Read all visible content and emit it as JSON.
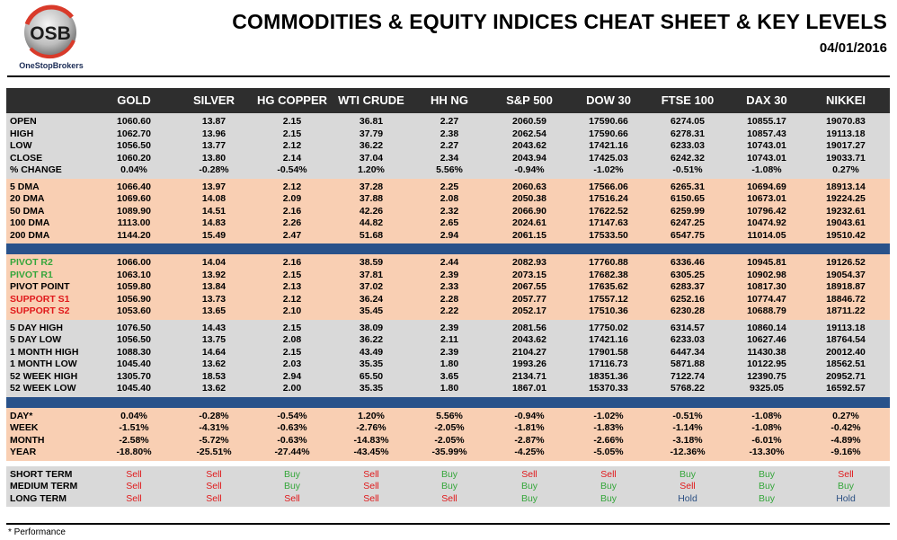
{
  "logo": {
    "mark": "OSB",
    "name": "OneStopBrokers"
  },
  "title": "COMMODITIES & EQUITY INDICES CHEAT SHEET & KEY LEVELS",
  "date": "04/01/2016",
  "columns": [
    "GOLD",
    "SILVER",
    "HG COPPER",
    "WTI CRUDE",
    "HH NG",
    "S&P 500",
    "DOW 30",
    "FTSE 100",
    "DAX 30",
    "NIKKEI"
  ],
  "sections": [
    {
      "style": "gray",
      "rows": [
        {
          "label": "OPEN",
          "values": [
            "1060.60",
            "13.87",
            "2.15",
            "36.81",
            "2.27",
            "2060.59",
            "17590.66",
            "6274.05",
            "10855.17",
            "19070.83"
          ]
        },
        {
          "label": "HIGH",
          "values": [
            "1062.70",
            "13.96",
            "2.15",
            "37.79",
            "2.38",
            "2062.54",
            "17590.66",
            "6278.31",
            "10857.43",
            "19113.18"
          ]
        },
        {
          "label": "LOW",
          "values": [
            "1056.50",
            "13.77",
            "2.12",
            "36.22",
            "2.27",
            "2043.62",
            "17421.16",
            "6233.03",
            "10743.01",
            "19017.27"
          ]
        },
        {
          "label": "CLOSE",
          "values": [
            "1060.20",
            "13.80",
            "2.14",
            "37.04",
            "2.34",
            "2043.94",
            "17425.03",
            "6242.32",
            "10743.01",
            "19033.71"
          ]
        },
        {
          "label": "% CHANGE",
          "values": [
            "0.04%",
            "-0.28%",
            "-0.54%",
            "1.20%",
            "5.56%",
            "-0.94%",
            "-1.02%",
            "-0.51%",
            "-1.08%",
            "0.27%"
          ]
        }
      ]
    },
    {
      "style": "peach",
      "rows": [
        {
          "label": "5 DMA",
          "values": [
            "1066.40",
            "13.97",
            "2.12",
            "37.28",
            "2.25",
            "2060.63",
            "17566.06",
            "6265.31",
            "10694.69",
            "18913.14"
          ]
        },
        {
          "label": "20 DMA",
          "values": [
            "1069.60",
            "14.08",
            "2.09",
            "37.88",
            "2.08",
            "2050.38",
            "17516.24",
            "6150.65",
            "10673.01",
            "19224.25"
          ]
        },
        {
          "label": "50 DMA",
          "values": [
            "1089.90",
            "14.51",
            "2.16",
            "42.26",
            "2.32",
            "2066.90",
            "17622.52",
            "6259.99",
            "10796.42",
            "19232.61"
          ]
        },
        {
          "label": "100 DMA",
          "values": [
            "1113.00",
            "14.83",
            "2.26",
            "44.82",
            "2.65",
            "2024.61",
            "17147.63",
            "6247.25",
            "10474.92",
            "19043.61"
          ]
        },
        {
          "label": "200 DMA",
          "values": [
            "1144.20",
            "15.49",
            "2.47",
            "51.68",
            "2.94",
            "2061.15",
            "17533.50",
            "6547.75",
            "11014.05",
            "19510.42"
          ]
        }
      ]
    },
    {
      "style": "blue"
    },
    {
      "style": "peach",
      "rows": [
        {
          "label": "PIVOT R2",
          "label_color": "green",
          "values": [
            "1066.00",
            "14.04",
            "2.16",
            "38.59",
            "2.44",
            "2082.93",
            "17760.88",
            "6336.46",
            "10945.81",
            "19126.52"
          ]
        },
        {
          "label": "PIVOT R1",
          "label_color": "green",
          "values": [
            "1063.10",
            "13.92",
            "2.15",
            "37.81",
            "2.39",
            "2073.15",
            "17682.38",
            "6305.25",
            "10902.98",
            "19054.37"
          ]
        },
        {
          "label": "PIVOT POINT",
          "values": [
            "1059.80",
            "13.84",
            "2.13",
            "37.02",
            "2.33",
            "2067.55",
            "17635.62",
            "6283.37",
            "10817.30",
            "18918.87"
          ]
        },
        {
          "label": "SUPPORT S1",
          "label_color": "red",
          "values": [
            "1056.90",
            "13.73",
            "2.12",
            "36.24",
            "2.28",
            "2057.77",
            "17557.12",
            "6252.16",
            "10774.47",
            "18846.72"
          ]
        },
        {
          "label": "SUPPORT S2",
          "label_color": "red",
          "values": [
            "1053.60",
            "13.65",
            "2.10",
            "35.45",
            "2.22",
            "2052.17",
            "17510.36",
            "6230.28",
            "10688.79",
            "18711.22"
          ]
        }
      ]
    },
    {
      "style": "gray",
      "rows": [
        {
          "label": "5 DAY HIGH",
          "values": [
            "1076.50",
            "14.43",
            "2.15",
            "38.09",
            "2.39",
            "2081.56",
            "17750.02",
            "6314.57",
            "10860.14",
            "19113.18"
          ]
        },
        {
          "label": "5 DAY LOW",
          "values": [
            "1056.50",
            "13.75",
            "2.08",
            "36.22",
            "2.11",
            "2043.62",
            "17421.16",
            "6233.03",
            "10627.46",
            "18764.54"
          ]
        },
        {
          "label": "1 MONTH HIGH",
          "values": [
            "1088.30",
            "14.64",
            "2.15",
            "43.49",
            "2.39",
            "2104.27",
            "17901.58",
            "6447.34",
            "11430.38",
            "20012.40"
          ]
        },
        {
          "label": "1 MONTH LOW",
          "values": [
            "1045.40",
            "13.62",
            "2.03",
            "35.35",
            "1.80",
            "1993.26",
            "17116.73",
            "5871.88",
            "10122.95",
            "18562.51"
          ]
        },
        {
          "label": "52 WEEK HIGH",
          "values": [
            "1305.70",
            "18.53",
            "2.94",
            "65.50",
            "3.65",
            "2134.71",
            "18351.36",
            "7122.74",
            "12390.75",
            "20952.71"
          ]
        },
        {
          "label": "52 WEEK LOW",
          "values": [
            "1045.40",
            "13.62",
            "2.00",
            "35.35",
            "1.80",
            "1867.01",
            "15370.33",
            "5768.22",
            "9325.05",
            "16592.57"
          ]
        }
      ]
    },
    {
      "style": "blue"
    },
    {
      "style": "peach",
      "rows": [
        {
          "label": "DAY*",
          "values": [
            "0.04%",
            "-0.28%",
            "-0.54%",
            "1.20%",
            "5.56%",
            "-0.94%",
            "-1.02%",
            "-0.51%",
            "-1.08%",
            "0.27%"
          ]
        },
        {
          "label": "WEEK",
          "values": [
            "-1.51%",
            "-4.31%",
            "-0.63%",
            "-2.76%",
            "-2.05%",
            "-1.81%",
            "-1.83%",
            "-1.14%",
            "-1.08%",
            "-0.42%"
          ]
        },
        {
          "label": "MONTH",
          "values": [
            "-2.58%",
            "-5.72%",
            "-0.63%",
            "-14.83%",
            "-2.05%",
            "-2.87%",
            "-2.66%",
            "-3.18%",
            "-6.01%",
            "-4.89%"
          ]
        },
        {
          "label": "YEAR",
          "values": [
            "-18.80%",
            "-25.51%",
            "-27.44%",
            "-43.45%",
            "-35.99%",
            "-4.25%",
            "-5.05%",
            "-12.36%",
            "-13.30%",
            "-9.16%"
          ]
        }
      ]
    },
    {
      "style": "white"
    },
    {
      "style": "gray",
      "signals": true,
      "rows": [
        {
          "label": "SHORT TERM",
          "values": [
            "Sell",
            "Sell",
            "Buy",
            "Sell",
            "Buy",
            "Sell",
            "Sell",
            "Buy",
            "Buy",
            "Sell"
          ]
        },
        {
          "label": "MEDIUM TERM",
          "values": [
            "Sell",
            "Sell",
            "Buy",
            "Sell",
            "Buy",
            "Buy",
            "Buy",
            "Sell",
            "Buy",
            "Buy"
          ]
        },
        {
          "label": "LONG TERM",
          "values": [
            "Sell",
            "Sell",
            "Sell",
            "Sell",
            "Sell",
            "Buy",
            "Buy",
            "Hold",
            "Buy",
            "Hold"
          ]
        }
      ]
    }
  ],
  "signal_colors": {
    "Buy": "#35a63b",
    "Sell": "#e0181a",
    "Hold": "#2b4f82"
  },
  "footnote": "* Performance"
}
